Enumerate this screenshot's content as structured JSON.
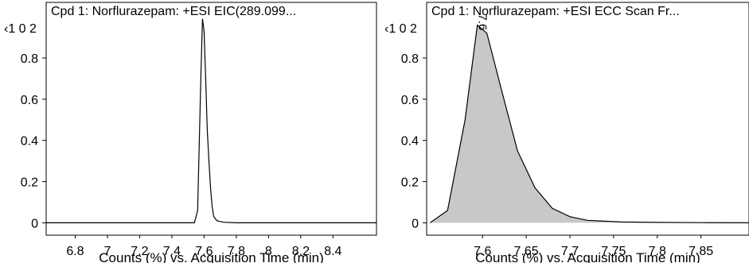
{
  "chart_data": [
    {
      "type": "line",
      "title": "Cpd 1: Norflurazepam: +ESI EIC(289.099...",
      "y_multiplier": "‹1 0 2",
      "xlabel": "Counts (%) vs. Acquisition Time (min)",
      "xlim": [
        6.62,
        8.67
      ],
      "ylim": [
        -0.06,
        1.07
      ],
      "y_ticks": [
        0,
        0.2,
        0.4,
        0.6,
        0.8
      ],
      "y_tick_labels": [
        "0",
        "0.2",
        "0.4",
        "0.6",
        "0.8"
      ],
      "x_ticks": [
        6.8,
        7.0,
        7.2,
        7.4,
        7.6,
        7.8,
        8.0,
        8.2,
        8.4
      ],
      "x_tick_labels": [
        "6.8",
        "7",
        "7.2",
        "7.4",
        "7.6",
        "7.8",
        "8",
        "8.2",
        "8.4"
      ],
      "series": [
        {
          "x": [
            6.62,
            7.54,
            7.56,
            7.58,
            7.59,
            7.6,
            7.61,
            7.62,
            7.63,
            7.64,
            7.65,
            7.66,
            7.68,
            7.72,
            7.8,
            8.67
          ],
          "values": [
            0.0,
            0.0,
            0.06,
            0.7,
            0.99,
            0.93,
            0.7,
            0.45,
            0.3,
            0.17,
            0.08,
            0.03,
            0.01,
            0.003,
            0.0,
            0.0
          ]
        }
      ],
      "grid": false,
      "line_color": "#000000"
    },
    {
      "type": "area",
      "title": "Cpd 1: Norflurazepam: +ESI ECC Scan Fr...",
      "y_multiplier": "‹1 0 2",
      "xlabel": "Counts (%) vs. Acquisition Time (min)",
      "xlim": [
        7.536,
        7.905
      ],
      "ylim": [
        -0.06,
        1.07
      ],
      "y_ticks": [
        0,
        0.2,
        0.4,
        0.6,
        0.8
      ],
      "y_tick_labels": [
        "0",
        "0.2",
        "0.4",
        "0.6",
        "0.8"
      ],
      "x_ticks": [
        7.6,
        7.65,
        7.7,
        7.75,
        7.8,
        7.85
      ],
      "x_tick_labels": [
        "7.6",
        "7.65",
        "7.7",
        "7.75",
        "7.8",
        "7.85"
      ],
      "peak_label": "7.6",
      "series": [
        {
          "x": [
            7.54,
            7.56,
            7.58,
            7.594,
            7.605,
            7.622,
            7.64,
            7.66,
            7.68,
            7.7,
            7.72,
            7.76,
            7.8,
            7.85,
            7.905
          ],
          "values": [
            0.0,
            0.06,
            0.5,
            0.96,
            0.92,
            0.64,
            0.35,
            0.17,
            0.07,
            0.03,
            0.012,
            0.004,
            0.002,
            0.001,
            0.0
          ]
        }
      ],
      "grid": false,
      "fill_color": "#c8c8c8",
      "line_color": "#000000"
    }
  ]
}
